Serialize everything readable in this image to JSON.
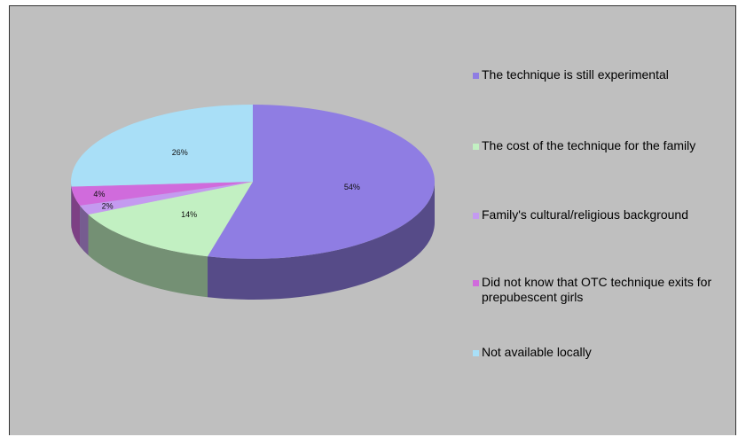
{
  "chart_data": {
    "type": "pie",
    "title": "",
    "slices": [
      {
        "label": "The technique is still experimental",
        "value": 54,
        "value_label": "54%",
        "color": "#8f7de3"
      },
      {
        "label": "The cost of the technique for the family",
        "value": 14,
        "value_label": "14%",
        "color": "#c2f0c2"
      },
      {
        "label": "Family's cultural/religious background",
        "value": 2,
        "value_label": "2%",
        "color": "#c49af0"
      },
      {
        "label": "Did not know that OTC technique exits for prepubescent girls",
        "value": 4,
        "value_label": "4%",
        "color": "#d06bdc"
      },
      {
        "label": "Not available locally",
        "value": 26,
        "value_label": "26%",
        "color": "#a9dff7"
      }
    ],
    "legend_position": "right",
    "style": "3d"
  },
  "colors": {
    "background": "#bfbfbf"
  }
}
